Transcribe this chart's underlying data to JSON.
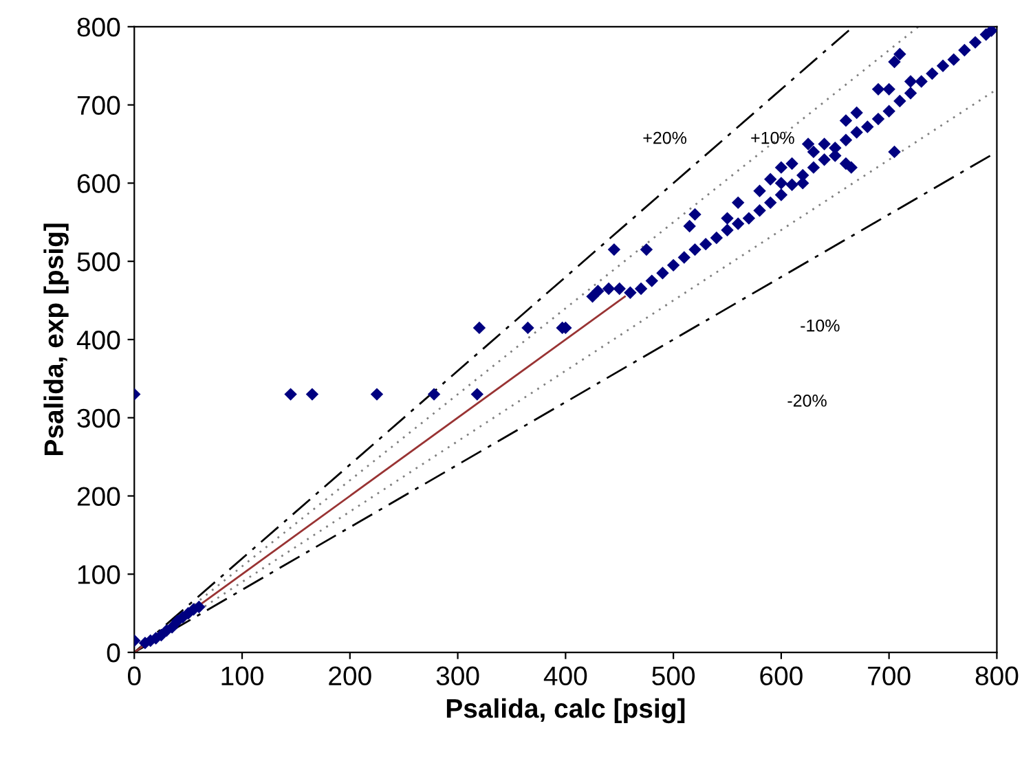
{
  "chart_data": {
    "type": "scatter",
    "xlabel": "Psalida, calc [psig]",
    "ylabel": "Psalida, exp [psig]",
    "xlim": [
      0,
      800
    ],
    "ylim": [
      0,
      800
    ],
    "xticks": [
      0,
      100,
      200,
      300,
      400,
      500,
      600,
      700,
      800
    ],
    "yticks": [
      0,
      100,
      200,
      300,
      400,
      500,
      600,
      700,
      800
    ],
    "grid": false,
    "legend": false,
    "series": [
      {
        "type": "line",
        "color": "#000000",
        "line_style": "dashdot",
        "x": [
          0,
          666.7
        ],
        "values": [
          0,
          800
        ]
      },
      {
        "type": "line",
        "color": "#808080",
        "line_style": "dotted",
        "x": [
          0,
          727.3
        ],
        "values": [
          0,
          800
        ]
      },
      {
        "type": "line",
        "color": "#808080",
        "line_style": "dotted",
        "x": [
          0,
          800
        ],
        "values": [
          0,
          720
        ]
      },
      {
        "type": "line",
        "color": "#000000",
        "line_style": "dashdot",
        "x": [
          0,
          800
        ],
        "values": [
          0,
          640
        ]
      },
      {
        "type": "line",
        "color": "#993333",
        "line_style": "solid",
        "x": [
          0,
          455
        ],
        "values": [
          0,
          455
        ]
      },
      {
        "marker": "diamond",
        "color": "#000080",
        "x": [
          0,
          0,
          10,
          15,
          20,
          25,
          30,
          35,
          40,
          45,
          50,
          55,
          60,
          145,
          165,
          225,
          278,
          318,
          320,
          365,
          397,
          400,
          425,
          430,
          440,
          450,
          460,
          470,
          480,
          490,
          500,
          510,
          520,
          530,
          540,
          550,
          560,
          570,
          580,
          590,
          600,
          610,
          620,
          630,
          640,
          650,
          660,
          670,
          680,
          690,
          700,
          710,
          720,
          730,
          740,
          750,
          760,
          770,
          780,
          790,
          795,
          445,
          475,
          520,
          515,
          560,
          600,
          625,
          640,
          660,
          690,
          705,
          710,
          705,
          650,
          660,
          665,
          620,
          600,
          580,
          550,
          590,
          610,
          630,
          670,
          700,
          720
        ],
        "values": [
          330,
          15,
          12,
          15,
          18,
          22,
          28,
          32,
          40,
          45,
          50,
          55,
          58,
          330,
          330,
          330,
          330,
          330,
          415,
          415,
          415,
          415,
          455,
          462,
          465,
          465,
          460,
          465,
          475,
          485,
          495,
          505,
          515,
          522,
          530,
          540,
          548,
          555,
          565,
          575,
          585,
          598,
          610,
          620,
          630,
          645,
          655,
          665,
          672,
          682,
          692,
          705,
          715,
          730,
          740,
          750,
          758,
          770,
          780,
          790,
          795,
          515,
          515,
          560,
          545,
          575,
          620,
          650,
          650,
          680,
          720,
          755,
          765,
          640,
          635,
          625,
          620,
          600,
          600,
          590,
          555,
          605,
          625,
          640,
          690,
          720,
          730
        ]
      }
    ],
    "annotations": [
      "+20%",
      "+10%",
      "-10%",
      "-20%"
    ]
  }
}
